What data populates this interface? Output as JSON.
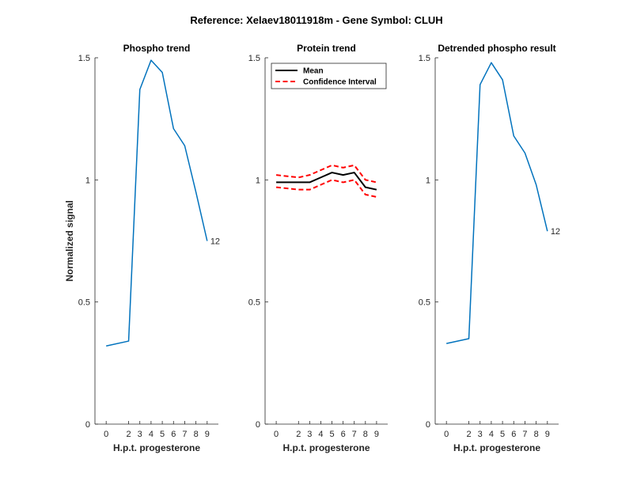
{
  "figure": {
    "suptitle": "Reference:  Xelaev18011918m - Gene Symbol:  CLUH"
  },
  "colors": {
    "series_blue": "#0072BD",
    "mean_black": "#000000",
    "ci_red": "#FF0000",
    "axis": "#262626"
  },
  "chart_data": [
    {
      "type": "line",
      "title": "Phospho trend",
      "xlabel": "H.p.t. progesterone",
      "ylabel": "Normalized signal",
      "x": [
        0,
        2,
        3,
        4,
        5,
        6,
        7,
        8,
        9
      ],
      "xticklabels": [
        "0",
        "2",
        "3",
        "4",
        "5",
        "6",
        "7",
        "8",
        "9"
      ],
      "yticks": [
        0,
        0.5,
        1,
        1.5
      ],
      "yticklabels": [
        "0",
        "0.5",
        "1",
        "1.5"
      ],
      "ylim": [
        0,
        1.5
      ],
      "grid": false,
      "series": [
        {
          "values": [
            0.32,
            0.34,
            1.37,
            1.49,
            1.44,
            1.21,
            1.14,
            0.95,
            0.75
          ],
          "color": "#0072BD"
        }
      ],
      "end_label": "12"
    },
    {
      "type": "line",
      "title": "Protein trend",
      "xlabel": "H.p.t. progesterone",
      "ylabel": "",
      "x": [
        0,
        2,
        3,
        4,
        5,
        6,
        7,
        8,
        9
      ],
      "xticklabels": [
        "0",
        "2",
        "3",
        "4",
        "5",
        "6",
        "7",
        "8",
        "9"
      ],
      "yticks": [
        0,
        0.5,
        1,
        1.5
      ],
      "yticklabels": [
        "0",
        "0.5",
        "1",
        "1.5"
      ],
      "ylim": [
        0,
        1.5
      ],
      "grid": false,
      "legend_position": "top-left",
      "series": [
        {
          "name": "Mean",
          "values": [
            0.99,
            0.99,
            0.99,
            1.01,
            1.03,
            1.02,
            1.03,
            0.97,
            0.96
          ],
          "color": "#000000",
          "style": "solid"
        },
        {
          "name": "Confidence Interval",
          "values": [
            1.02,
            1.01,
            1.02,
            1.04,
            1.06,
            1.05,
            1.06,
            1.0,
            0.99
          ],
          "color": "#FF0000",
          "style": "dashed"
        },
        {
          "name": "",
          "values": [
            0.97,
            0.96,
            0.96,
            0.98,
            1.0,
            0.99,
            1.0,
            0.94,
            0.93
          ],
          "color": "#FF0000",
          "style": "dashed"
        }
      ]
    },
    {
      "type": "line",
      "title": "Detrended phospho result",
      "xlabel": "H.p.t. progesterone",
      "ylabel": "",
      "x": [
        0,
        2,
        3,
        4,
        5,
        6,
        7,
        8,
        9
      ],
      "xticklabels": [
        "0",
        "2",
        "3",
        "4",
        "5",
        "6",
        "7",
        "8",
        "9"
      ],
      "yticks": [
        0,
        0.5,
        1,
        1.5
      ],
      "yticklabels": [
        "0",
        "0.5",
        "1",
        "1.5"
      ],
      "ylim": [
        0,
        1.5
      ],
      "grid": false,
      "series": [
        {
          "values": [
            0.33,
            0.35,
            1.39,
            1.48,
            1.41,
            1.18,
            1.11,
            0.98,
            0.79
          ],
          "color": "#0072BD"
        }
      ],
      "end_label": "12"
    }
  ]
}
